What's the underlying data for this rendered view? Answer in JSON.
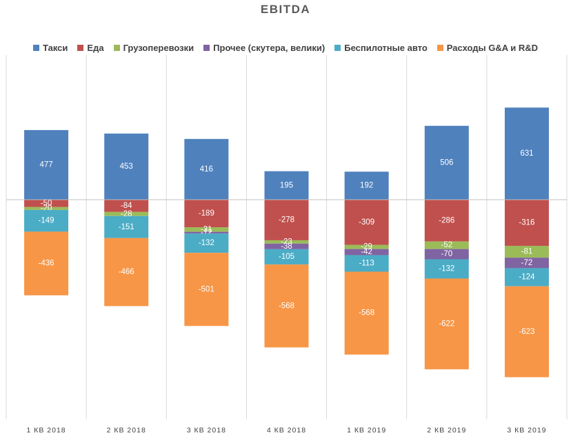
{
  "chart_data": {
    "type": "bar",
    "stacked": true,
    "title": "EBITDA",
    "categories": [
      "1 КВ 2018",
      "2 КВ 2018",
      "3 КВ 2018",
      "4 КВ 2018",
      "1 КВ 2019",
      "2 КВ 2019",
      "3 КВ 2019"
    ],
    "series": [
      {
        "name": "Такси",
        "color": "#4f81bd",
        "values": [
          477,
          453,
          416,
          195,
          192,
          506,
          631
        ]
      },
      {
        "name": "Еда",
        "color": "#c0504d",
        "values": [
          -50,
          -84,
          -189,
          -278,
          -309,
          -286,
          -316
        ]
      },
      {
        "name": "Грузоперевозки",
        "color": "#9bbb59",
        "values": [
          -20,
          -28,
          -31,
          -23,
          -29,
          -52,
          -81
        ]
      },
      {
        "name": "Прочее (скутера, велики)",
        "color": "#8064a2",
        "values": [
          0,
          0,
          -12,
          -38,
          -42,
          -70,
          -72
        ]
      },
      {
        "name": "Беспилотные авто",
        "color": "#4bacc6",
        "values": [
          -149,
          -151,
          -132,
          -105,
          -113,
          -132,
          -124
        ]
      },
      {
        "name": "Расходы G&A и R&D",
        "color": "#f79646",
        "values": [
          -436,
          -466,
          -501,
          -568,
          -568,
          -622,
          -623
        ]
      }
    ],
    "legend_position": "top",
    "grid": "vertical category separators",
    "ylim": [
      -1200,
      800
    ]
  }
}
